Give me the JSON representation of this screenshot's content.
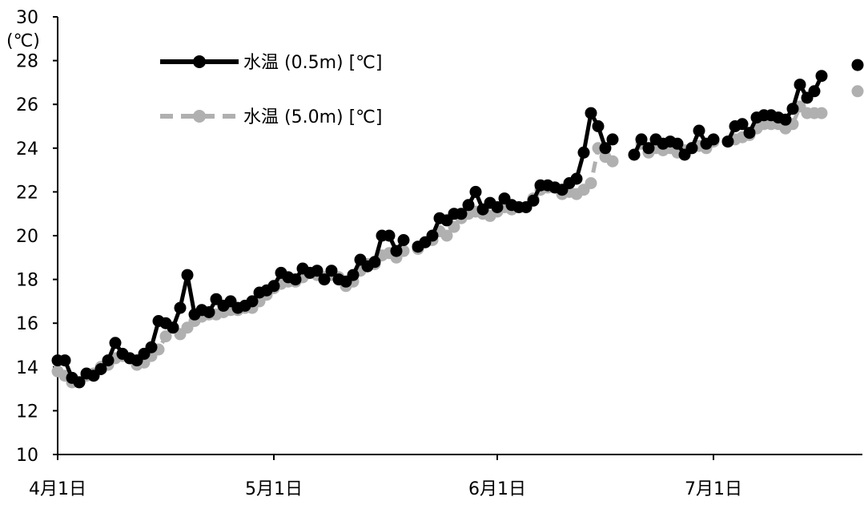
{
  "chart_data": {
    "type": "line",
    "unit_label": "(℃)",
    "ylim": [
      10,
      30
    ],
    "yticks": [
      10,
      12,
      14,
      16,
      18,
      20,
      22,
      24,
      26,
      28,
      30
    ],
    "x_tick_labels": [
      "4月1日",
      "5月1日",
      "6月1日",
      "7月1日"
    ],
    "x_tick_days": [
      1,
      31,
      62,
      92
    ],
    "x_range_days": [
      1,
      112
    ],
    "grid": false,
    "legend_position": "top-left",
    "series": [
      {
        "name": "水温 (0.5m) [℃]",
        "color": "#000000",
        "dash": false,
        "points": [
          [
            1,
            14.3
          ],
          [
            2,
            14.3
          ],
          [
            3,
            13.5
          ],
          [
            4,
            13.3
          ],
          [
            5,
            13.7
          ],
          [
            6,
            13.6
          ],
          [
            7,
            13.9
          ],
          [
            8,
            14.3
          ],
          [
            9,
            15.1
          ],
          [
            10,
            14.6
          ],
          [
            11,
            14.4
          ],
          [
            12,
            14.3
          ],
          [
            13,
            14.6
          ],
          [
            14,
            14.9
          ],
          [
            15,
            16.1
          ],
          [
            16,
            16.0
          ],
          [
            17,
            15.8
          ],
          [
            18,
            16.7
          ],
          [
            19,
            18.2
          ],
          [
            20,
            16.4
          ],
          [
            21,
            16.6
          ],
          [
            22,
            16.5
          ],
          [
            23,
            17.1
          ],
          [
            24,
            16.8
          ],
          [
            25,
            17.0
          ],
          [
            26,
            16.7
          ],
          [
            27,
            16.8
          ],
          [
            28,
            17.0
          ],
          [
            29,
            17.4
          ],
          [
            30,
            17.5
          ],
          [
            31,
            17.7
          ],
          [
            32,
            18.3
          ],
          [
            33,
            18.1
          ],
          [
            34,
            18.0
          ],
          [
            35,
            18.5
          ],
          [
            36,
            18.3
          ],
          [
            37,
            18.4
          ],
          [
            38,
            18.0
          ],
          [
            39,
            18.4
          ],
          [
            40,
            18.0
          ],
          [
            41,
            17.9
          ],
          [
            42,
            18.2
          ],
          [
            43,
            18.9
          ],
          [
            44,
            18.6
          ],
          [
            45,
            18.8
          ],
          [
            46,
            20.0
          ],
          [
            47,
            20.0
          ],
          [
            48,
            19.3
          ],
          [
            49,
            19.8
          ],
          [
            51,
            19.5
          ],
          [
            52,
            19.7
          ],
          [
            53,
            20.0
          ],
          [
            54,
            20.8
          ],
          [
            55,
            20.7
          ],
          [
            56,
            21.0
          ],
          [
            57,
            21.0
          ],
          [
            58,
            21.4
          ],
          [
            59,
            22.0
          ],
          [
            60,
            21.2
          ],
          [
            61,
            21.5
          ],
          [
            62,
            21.3
          ],
          [
            63,
            21.7
          ],
          [
            64,
            21.4
          ],
          [
            65,
            21.3
          ],
          [
            66,
            21.3
          ],
          [
            67,
            21.6
          ],
          [
            68,
            22.3
          ],
          [
            69,
            22.3
          ],
          [
            70,
            22.2
          ],
          [
            71,
            22.1
          ],
          [
            72,
            22.4
          ],
          [
            73,
            22.6
          ],
          [
            74,
            23.8
          ],
          [
            75,
            25.6
          ],
          [
            76,
            25.0
          ],
          [
            77,
            24.0
          ],
          [
            78,
            24.4
          ],
          [
            81,
            23.7
          ],
          [
            82,
            24.4
          ],
          [
            83,
            24.0
          ],
          [
            84,
            24.4
          ],
          [
            85,
            24.2
          ],
          [
            86,
            24.3
          ],
          [
            87,
            24.2
          ],
          [
            88,
            23.7
          ],
          [
            89,
            24.0
          ],
          [
            90,
            24.8
          ],
          [
            91,
            24.2
          ],
          [
            92,
            24.4
          ],
          [
            94,
            24.3
          ],
          [
            95,
            25.0
          ],
          [
            96,
            25.1
          ],
          [
            97,
            24.7
          ],
          [
            98,
            25.4
          ],
          [
            99,
            25.5
          ],
          [
            100,
            25.5
          ],
          [
            101,
            25.4
          ],
          [
            102,
            25.3
          ],
          [
            103,
            25.8
          ],
          [
            104,
            26.9
          ],
          [
            105,
            26.3
          ],
          [
            106,
            26.6
          ],
          [
            107,
            27.3
          ],
          [
            112,
            27.8
          ]
        ]
      },
      {
        "name": "水温 (5.0m) [℃]",
        "color": "#b0b0b0",
        "dash": true,
        "points": [
          [
            1,
            13.8
          ],
          [
            2,
            13.6
          ],
          [
            3,
            13.3
          ],
          [
            4,
            13.3
          ],
          [
            5,
            13.6
          ],
          [
            6,
            13.7
          ],
          [
            7,
            14.0
          ],
          [
            8,
            14.1
          ],
          [
            9,
            14.4
          ],
          [
            10,
            14.5
          ],
          [
            11,
            14.4
          ],
          [
            12,
            14.1
          ],
          [
            13,
            14.2
          ],
          [
            14,
            14.5
          ],
          [
            15,
            14.8
          ],
          [
            16,
            15.4
          ],
          [
            17,
            15.8
          ],
          [
            18,
            15.5
          ],
          [
            19,
            15.8
          ],
          [
            20,
            16.1
          ],
          [
            21,
            16.3
          ],
          [
            22,
            16.4
          ],
          [
            23,
            16.4
          ],
          [
            24,
            16.5
          ],
          [
            25,
            16.6
          ],
          [
            26,
            16.6
          ],
          [
            27,
            16.7
          ],
          [
            28,
            16.7
          ],
          [
            29,
            17.0
          ],
          [
            30,
            17.3
          ],
          [
            31,
            17.6
          ],
          [
            32,
            17.8
          ],
          [
            33,
            17.9
          ],
          [
            34,
            17.9
          ],
          [
            35,
            18.1
          ],
          [
            36,
            18.3
          ],
          [
            37,
            18.2
          ],
          [
            38,
            18.1
          ],
          [
            39,
            18.2
          ],
          [
            40,
            18.1
          ],
          [
            41,
            17.7
          ],
          [
            42,
            17.9
          ],
          [
            43,
            18.4
          ],
          [
            44,
            18.7
          ],
          [
            45,
            18.7
          ],
          [
            46,
            19.1
          ],
          [
            47,
            19.2
          ],
          [
            48,
            19.0
          ],
          [
            49,
            19.3
          ],
          [
            51,
            19.4
          ],
          [
            52,
            19.7
          ],
          [
            53,
            19.8
          ],
          [
            54,
            20.2
          ],
          [
            55,
            20.0
          ],
          [
            56,
            20.4
          ],
          [
            57,
            20.8
          ],
          [
            58,
            21.0
          ],
          [
            59,
            21.1
          ],
          [
            60,
            21.0
          ],
          [
            61,
            20.9
          ],
          [
            62,
            21.1
          ],
          [
            63,
            21.3
          ],
          [
            64,
            21.2
          ],
          [
            65,
            21.3
          ],
          [
            66,
            21.3
          ],
          [
            67,
            21.7
          ],
          [
            68,
            22.1
          ],
          [
            69,
            22.2
          ],
          [
            70,
            22.2
          ],
          [
            71,
            21.9
          ],
          [
            72,
            22.0
          ],
          [
            73,
            21.9
          ],
          [
            74,
            22.1
          ],
          [
            75,
            22.4
          ],
          [
            76,
            24.0
          ],
          [
            77,
            23.6
          ],
          [
            78,
            23.4
          ],
          [
            81,
            23.7
          ],
          [
            82,
            24.2
          ],
          [
            83,
            23.8
          ],
          [
            84,
            24.0
          ],
          [
            85,
            23.9
          ],
          [
            86,
            24.0
          ],
          [
            87,
            23.8
          ],
          [
            88,
            23.9
          ],
          [
            89,
            24.0
          ],
          [
            90,
            24.1
          ],
          [
            91,
            24.0
          ],
          [
            92,
            24.3
          ],
          [
            94,
            24.3
          ],
          [
            95,
            24.4
          ],
          [
            96,
            24.5
          ],
          [
            97,
            24.6
          ],
          [
            98,
            24.9
          ],
          [
            99,
            25.1
          ],
          [
            100,
            25.1
          ],
          [
            101,
            25.1
          ],
          [
            102,
            24.9
          ],
          [
            103,
            25.1
          ],
          [
            104,
            25.9
          ],
          [
            105,
            25.6
          ],
          [
            106,
            25.6
          ],
          [
            107,
            25.6
          ],
          [
            112,
            26.6
          ]
        ]
      }
    ]
  }
}
